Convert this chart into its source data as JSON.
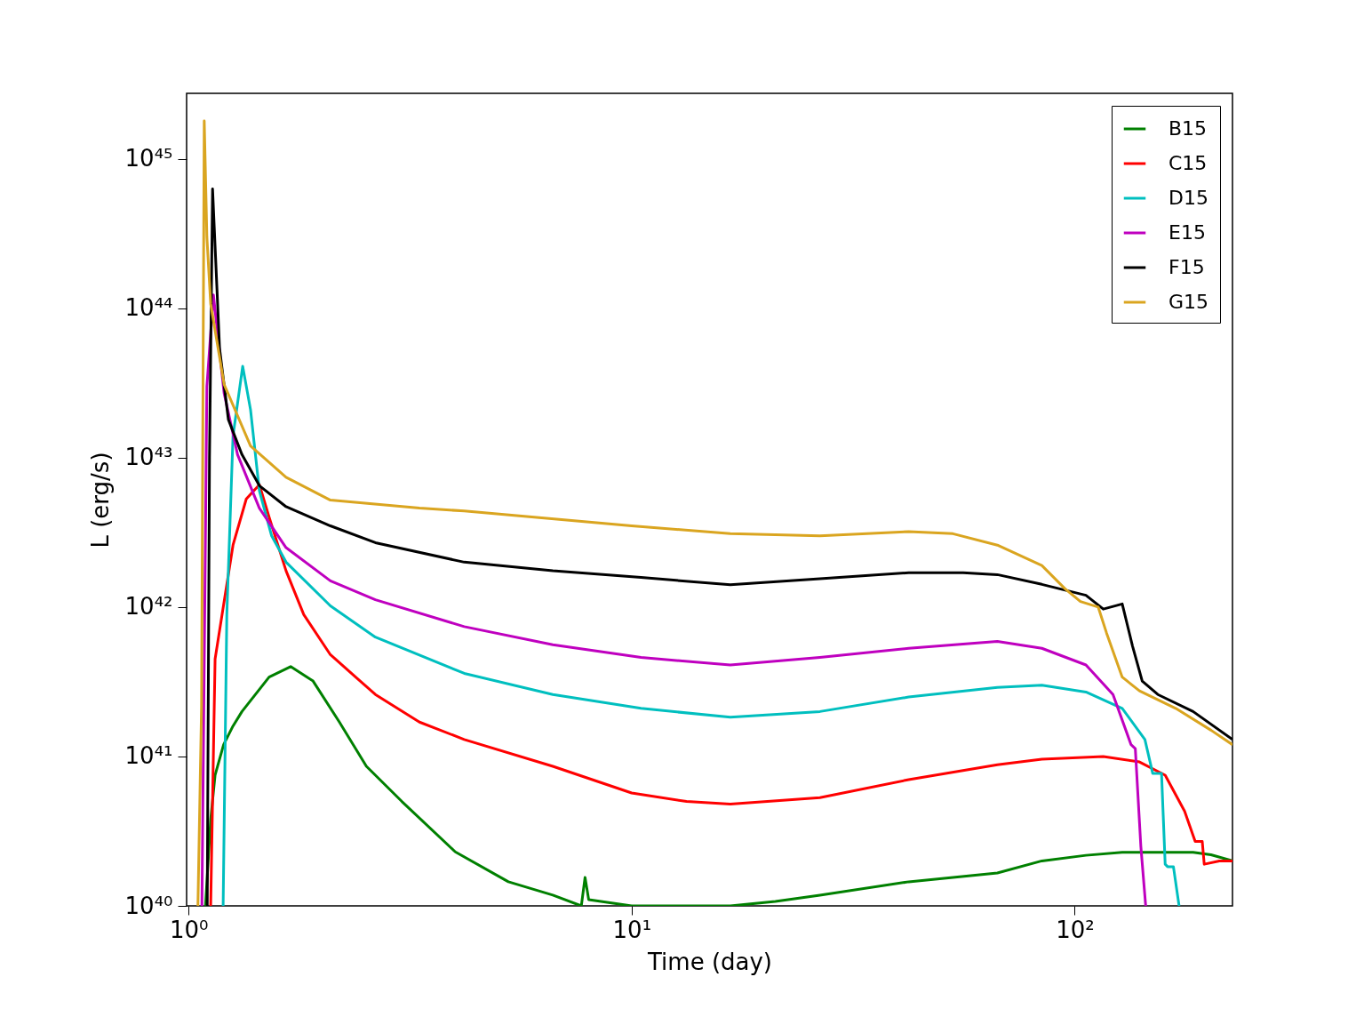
{
  "chart_data": {
    "type": "line",
    "xlabel": "Time (day)",
    "ylabel": "L (erg/s)",
    "log": "xy",
    "grid": false,
    "legend": "top right",
    "line_style": "solid",
    "marker": "none",
    "xlim": [
      0.99,
      227
    ],
    "ylim": [
      1e+40,
      2.75e+45
    ],
    "xticks": [
      {
        "value": 1,
        "label": "10⁰"
      },
      {
        "value": 10,
        "label": "10¹"
      },
      {
        "value": 100,
        "label": "10²"
      }
    ],
    "yticks": [
      {
        "value": 1e+40,
        "label": "10⁴⁰"
      },
      {
        "value": 1e+41,
        "label": "10⁴¹"
      },
      {
        "value": 1e+42,
        "label": "10⁴²"
      },
      {
        "value": 1e+43,
        "label": "10⁴³"
      },
      {
        "value": 1e+44,
        "label": "10⁴⁴"
      },
      {
        "value": 1e+45,
        "label": "10⁴⁵"
      }
    ],
    "series": [
      {
        "name": "B15",
        "color": "#008000",
        "x": [
          1.092,
          1.122,
          1.148,
          1.2,
          1.26,
          1.32,
          1.52,
          1.7,
          1.91,
          2.19,
          2.52,
          3.03,
          4.0,
          5.27,
          6.64,
          7.7,
          7.85,
          8.0,
          10,
          16.7,
          21.1,
          26.6,
          42.2,
          66.9,
          84.3,
          106,
          128,
          154,
          185,
          203,
          227
        ],
        "values": [
          1e+40,
          3.8e+40,
          7.5e+40,
          1.2e+41,
          1.6e+41,
          2e+41,
          3.4e+41,
          4e+41,
          3.2e+41,
          1.7e+41,
          8.6e+40,
          5e+40,
          2.3e+40,
          1.45e+40,
          1.18e+40,
          1e+40,
          1.55e+40,
          1.1e+40,
          1e+40,
          1e+40,
          1.07e+40,
          1.18e+40,
          1.45e+40,
          1.66e+40,
          2e+40,
          2.18e+40,
          2.28e+40,
          2.28e+40,
          2.28e+40,
          2.2e+40,
          2e+40
        ]
      },
      {
        "name": "C15",
        "color": "#ff0000",
        "x": [
          1.122,
          1.148,
          1.26,
          1.35,
          1.445,
          1.52,
          1.66,
          1.82,
          2.09,
          2.64,
          3.32,
          4.19,
          6.64,
          10,
          13.3,
          16.7,
          26.6,
          42.2,
          66.9,
          84.3,
          116,
          140,
          160,
          177,
          187,
          194,
          196,
          212,
          227
        ],
        "values": [
          1e+40,
          4.5e+41,
          2.6e+42,
          5.3e+42,
          6.6e+42,
          4e+42,
          1.75e+42,
          8.9e+41,
          4.8e+41,
          2.6e+41,
          1.7e+41,
          1.3e+41,
          8.6e+40,
          5.7e+40,
          5e+40,
          4.8e+40,
          5.3e+40,
          7e+40,
          8.8e+40,
          9.6e+40,
          1e+41,
          9.2e+40,
          7.5e+40,
          4.3e+40,
          2.7e+40,
          2.7e+40,
          1.9e+40,
          2e+40,
          2e+40
        ]
      },
      {
        "name": "D15",
        "color": "#00bfbf",
        "x": [
          1.197,
          1.22,
          1.26,
          1.325,
          1.38,
          1.445,
          1.54,
          1.66,
          2.09,
          2.64,
          4.19,
          6.64,
          10.5,
          16.7,
          26.6,
          42.2,
          66.9,
          84.3,
          106,
          128,
          144,
          150,
          157,
          160,
          162,
          167,
          172
        ],
        "values": [
          1e+40,
          8.9e+41,
          1.4e+43,
          4.1e+43,
          2.1e+43,
          6e+42,
          3e+42,
          2e+42,
          1.02e+42,
          6.3e+41,
          3.6e+41,
          2.6e+41,
          2.1e+41,
          1.83e+41,
          2e+41,
          2.5e+41,
          2.9e+41,
          3e+41,
          2.7e+41,
          2.1e+41,
          1.3e+41,
          7.7e+40,
          7.7e+40,
          1.9e+40,
          1.83e+40,
          1.83e+40,
          1e+40
        ]
      },
      {
        "name": "E15",
        "color": "#bf00bf",
        "x": [
          1.072,
          1.1,
          1.138,
          1.203,
          1.29,
          1.445,
          1.66,
          2.09,
          2.64,
          4.19,
          6.64,
          10.5,
          16.7,
          26.6,
          42.2,
          66.9,
          84.3,
          106,
          122,
          134,
          137,
          141,
          144.6
        ],
        "values": [
          1e+40,
          3e+43,
          1.23e+44,
          2.7e+43,
          1.05e+43,
          4.6e+42,
          2.5e+42,
          1.5e+42,
          1.12e+42,
          7.4e+41,
          5.6e+41,
          4.6e+41,
          4.1e+41,
          4.6e+41,
          5.3e+41,
          5.9e+41,
          5.3e+41,
          4.1e+41,
          2.6e+41,
          1.2e+41,
          1.13e+41,
          2.5e+40,
          1e+40
        ]
      },
      {
        "name": "F15",
        "color": "#000000",
        "x": [
          1.102,
          1.115,
          1.133,
          1.175,
          1.23,
          1.32,
          1.445,
          1.66,
          2.09,
          2.64,
          4.19,
          6.64,
          10.5,
          16.7,
          26.6,
          42.2,
          56,
          66.9,
          84.3,
          106,
          116,
          128,
          135,
          142,
          154,
          185,
          227
        ],
        "values": [
          1e+40,
          1e+43,
          6.3e+44,
          5.4e+43,
          1.8e+43,
          1.05e+43,
          6.5e+42,
          4.7e+42,
          3.5e+42,
          2.7e+42,
          2e+42,
          1.75e+42,
          1.58e+42,
          1.41e+42,
          1.55e+42,
          1.7e+42,
          1.7e+42,
          1.65e+42,
          1.42e+42,
          1.2e+42,
          9.7e+41,
          1.05e+42,
          5.5e+41,
          3.2e+41,
          2.6e+41,
          2e+41,
          1.3e+41
        ]
      },
      {
        "name": "G15",
        "color": "#daa520",
        "x": [
          1.05,
          1.07,
          1.085,
          1.1,
          1.122,
          1.203,
          1.38,
          1.66,
          2.09,
          3.32,
          4.19,
          10,
          16.7,
          26.6,
          42.2,
          53.1,
          66.9,
          84.3,
          95,
          103,
          113,
          118,
          128,
          140,
          169,
          203,
          227
        ],
        "values": [
          1e+40,
          2.2e+41,
          1.8e+45,
          3e+44,
          1.07e+44,
          3.1e+43,
          1.2e+43,
          7.4e+42,
          5.2e+42,
          4.6e+42,
          4.4e+42,
          3.5e+42,
          3.1e+42,
          3e+42,
          3.2e+42,
          3.1e+42,
          2.6e+42,
          1.9e+42,
          1.33e+42,
          1.09e+42,
          1e+42,
          6.7e+41,
          3.4e+41,
          2.75e+41,
          2.1e+41,
          1.5e+41,
          1.2e+41
        ]
      }
    ]
  }
}
